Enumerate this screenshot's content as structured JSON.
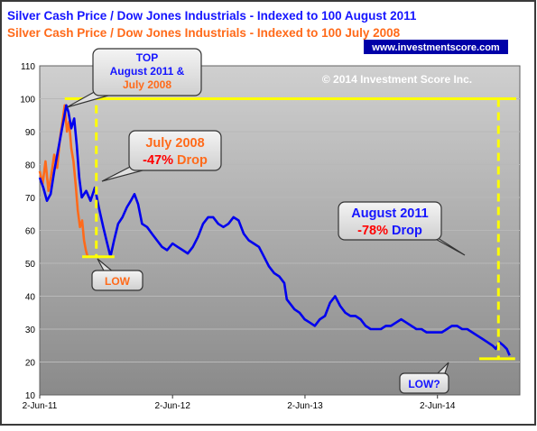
{
  "chart_data": {
    "type": "line",
    "titles": [
      {
        "text": "Silver Cash Price / Dow Jones Industrials  - Indexed to 100 August 2011",
        "color": "#1515ff"
      },
      {
        "text": "Silver Cash Price / Dow Jones Industrials  - Indexed to 100 July 2008",
        "color": "#ff6a1a"
      }
    ],
    "website": "www.investmentscore.com",
    "copyright": "© 2014 Investment Score Inc.",
    "ylim": [
      10,
      110
    ],
    "y_ticks": [
      10,
      20,
      30,
      40,
      50,
      60,
      70,
      80,
      90,
      100,
      110
    ],
    "x_range": [
      "2011-06-02",
      "2015-01-15"
    ],
    "x_ticks": [
      {
        "date": "2011-06-02",
        "label": "2-Jun-11"
      },
      {
        "date": "2012-06-02",
        "label": "2-Jun-12"
      },
      {
        "date": "2013-06-02",
        "label": "2-Jun-13"
      },
      {
        "date": "2014-06-02",
        "label": "2-Jun-14"
      }
    ],
    "grid": true,
    "series": [
      {
        "color": "#ff6a1a",
        "points": [
          [
            "2011-06-02",
            78
          ],
          [
            "2011-06-10",
            74
          ],
          [
            "2011-06-18",
            81
          ],
          [
            "2011-06-26",
            72
          ],
          [
            "2011-07-04",
            77
          ],
          [
            "2011-07-12",
            83
          ],
          [
            "2011-07-20",
            79
          ],
          [
            "2011-07-28",
            88
          ],
          [
            "2011-08-05",
            94
          ],
          [
            "2011-08-10",
            98
          ],
          [
            "2011-08-16",
            90
          ],
          [
            "2011-08-22",
            93
          ],
          [
            "2011-08-28",
            85
          ],
          [
            "2011-09-03",
            81
          ],
          [
            "2011-09-09",
            74
          ],
          [
            "2011-09-15",
            66
          ],
          [
            "2011-09-21",
            61
          ],
          [
            "2011-09-27",
            63
          ],
          [
            "2011-10-02",
            57
          ],
          [
            "2011-10-07",
            54
          ],
          [
            "2011-10-12",
            52
          ]
        ]
      },
      {
        "color": "#0000ee",
        "points": [
          [
            "2011-06-02",
            76
          ],
          [
            "2011-06-12",
            73
          ],
          [
            "2011-06-22",
            69
          ],
          [
            "2011-07-02",
            71
          ],
          [
            "2011-07-12",
            78
          ],
          [
            "2011-07-22",
            84
          ],
          [
            "2011-08-01",
            90
          ],
          [
            "2011-08-08",
            94
          ],
          [
            "2011-08-14",
            98
          ],
          [
            "2011-08-20",
            96
          ],
          [
            "2011-08-28",
            91
          ],
          [
            "2011-09-05",
            94
          ],
          [
            "2011-09-12",
            86
          ],
          [
            "2011-09-19",
            76
          ],
          [
            "2011-09-26",
            70
          ],
          [
            "2011-10-08",
            72
          ],
          [
            "2011-10-20",
            69
          ],
          [
            "2011-11-01",
            73
          ],
          [
            "2011-11-12",
            67
          ],
          [
            "2011-11-24",
            61
          ],
          [
            "2011-12-05",
            56
          ],
          [
            "2011-12-14",
            52
          ],
          [
            "2011-12-24",
            57
          ],
          [
            "2012-01-04",
            62
          ],
          [
            "2012-01-16",
            64
          ],
          [
            "2012-01-28",
            67
          ],
          [
            "2012-02-08",
            69
          ],
          [
            "2012-02-18",
            71
          ],
          [
            "2012-02-28",
            68
          ],
          [
            "2012-03-10",
            62
          ],
          [
            "2012-03-24",
            61
          ],
          [
            "2012-04-06",
            59
          ],
          [
            "2012-04-20",
            57
          ],
          [
            "2012-05-04",
            55
          ],
          [
            "2012-05-18",
            54
          ],
          [
            "2012-06-02",
            56
          ],
          [
            "2012-06-16",
            55
          ],
          [
            "2012-06-30",
            54
          ],
          [
            "2012-07-14",
            53
          ],
          [
            "2012-07-28",
            55
          ],
          [
            "2012-08-11",
            58
          ],
          [
            "2012-08-25",
            62
          ],
          [
            "2012-09-08",
            64
          ],
          [
            "2012-09-22",
            64
          ],
          [
            "2012-10-06",
            62
          ],
          [
            "2012-10-20",
            61
          ],
          [
            "2012-11-03",
            62
          ],
          [
            "2012-11-17",
            64
          ],
          [
            "2012-12-01",
            63
          ],
          [
            "2012-12-15",
            59
          ],
          [
            "2012-12-29",
            57
          ],
          [
            "2013-01-12",
            56
          ],
          [
            "2013-01-26",
            55
          ],
          [
            "2013-02-09",
            52
          ],
          [
            "2013-02-23",
            49
          ],
          [
            "2013-03-09",
            47
          ],
          [
            "2013-03-23",
            46
          ],
          [
            "2013-04-06",
            44
          ],
          [
            "2013-04-13",
            39
          ],
          [
            "2013-04-20",
            38
          ],
          [
            "2013-05-04",
            36
          ],
          [
            "2013-05-18",
            35
          ],
          [
            "2013-06-01",
            33
          ],
          [
            "2013-06-15",
            32
          ],
          [
            "2013-06-29",
            31
          ],
          [
            "2013-07-13",
            33
          ],
          [
            "2013-07-27",
            34
          ],
          [
            "2013-08-10",
            38
          ],
          [
            "2013-08-24",
            40
          ],
          [
            "2013-09-07",
            37
          ],
          [
            "2013-09-21",
            35
          ],
          [
            "2013-10-05",
            34
          ],
          [
            "2013-10-19",
            34
          ],
          [
            "2013-11-02",
            33
          ],
          [
            "2013-11-16",
            31
          ],
          [
            "2013-11-30",
            30
          ],
          [
            "2013-12-14",
            30
          ],
          [
            "2013-12-28",
            30
          ],
          [
            "2014-01-11",
            31
          ],
          [
            "2014-01-25",
            31
          ],
          [
            "2014-02-08",
            32
          ],
          [
            "2014-02-22",
            33
          ],
          [
            "2014-03-08",
            32
          ],
          [
            "2014-03-22",
            31
          ],
          [
            "2014-04-05",
            30
          ],
          [
            "2014-04-19",
            30
          ],
          [
            "2014-05-03",
            29
          ],
          [
            "2014-05-17",
            29
          ],
          [
            "2014-05-31",
            29
          ],
          [
            "2014-06-14",
            29
          ],
          [
            "2014-06-28",
            30
          ],
          [
            "2014-07-12",
            31
          ],
          [
            "2014-07-26",
            31
          ],
          [
            "2014-08-09",
            30
          ],
          [
            "2014-08-23",
            30
          ],
          [
            "2014-09-06",
            29
          ],
          [
            "2014-09-20",
            28
          ],
          [
            "2014-10-04",
            27
          ],
          [
            "2014-10-18",
            26
          ],
          [
            "2014-11-01",
            25
          ],
          [
            "2014-11-10",
            24
          ],
          [
            "2014-11-20",
            26
          ],
          [
            "2014-12-01",
            25
          ],
          [
            "2014-12-10",
            24
          ],
          [
            "2014-12-18",
            22
          ]
        ]
      }
    ],
    "reference_lines": [
      {
        "kind": "h",
        "y": 100,
        "from": "2011-08-10",
        "to": "2015-01-05",
        "color": "#ffff00",
        "dash": false
      },
      {
        "kind": "h",
        "y": 52,
        "from": "2011-09-27",
        "to": "2011-12-25",
        "color": "#ffff00",
        "dash": false
      },
      {
        "kind": "h",
        "y": 21,
        "from": "2014-09-25",
        "to": "2015-01-02",
        "color": "#ffff00",
        "dash": false
      },
      {
        "kind": "v",
        "x": "2011-11-05",
        "y1": 98,
        "y2": 52,
        "color": "#ffff00",
        "dash": true
      },
      {
        "kind": "v",
        "x": "2014-11-17",
        "y1": 100,
        "y2": 21,
        "color": "#ffff00",
        "dash": true
      }
    ],
    "annotations": {
      "top": {
        "lines": [
          [
            {
              "t": "TOP",
              "c": "#1515ff"
            }
          ],
          [
            {
              "t": "August 2011 &",
              "c": "#1515ff"
            }
          ],
          [
            {
              "t": "July 2008",
              "c": "#ff6a1a"
            }
          ]
        ]
      },
      "july2008": {
        "lines": [
          [
            {
              "t": "July 2008",
              "c": "#ff6a1a"
            }
          ],
          [
            {
              "t": "-47%",
              "c": "#ff0000"
            },
            {
              "t": " Drop",
              "c": "#ff6a1a"
            }
          ]
        ]
      },
      "aug2011": {
        "lines": [
          [
            {
              "t": "August 2011",
              "c": "#1515ff"
            }
          ],
          [
            {
              "t": "-78%",
              "c": "#ff0000"
            },
            {
              "t": " Drop",
              "c": "#1515ff"
            }
          ]
        ]
      },
      "low": {
        "lines": [
          [
            {
              "t": "LOW",
              "c": "#ff6a1a"
            }
          ]
        ]
      },
      "low_q": {
        "lines": [
          [
            {
              "t": "LOW?",
              "c": "#1515ff"
            }
          ]
        ]
      }
    }
  }
}
